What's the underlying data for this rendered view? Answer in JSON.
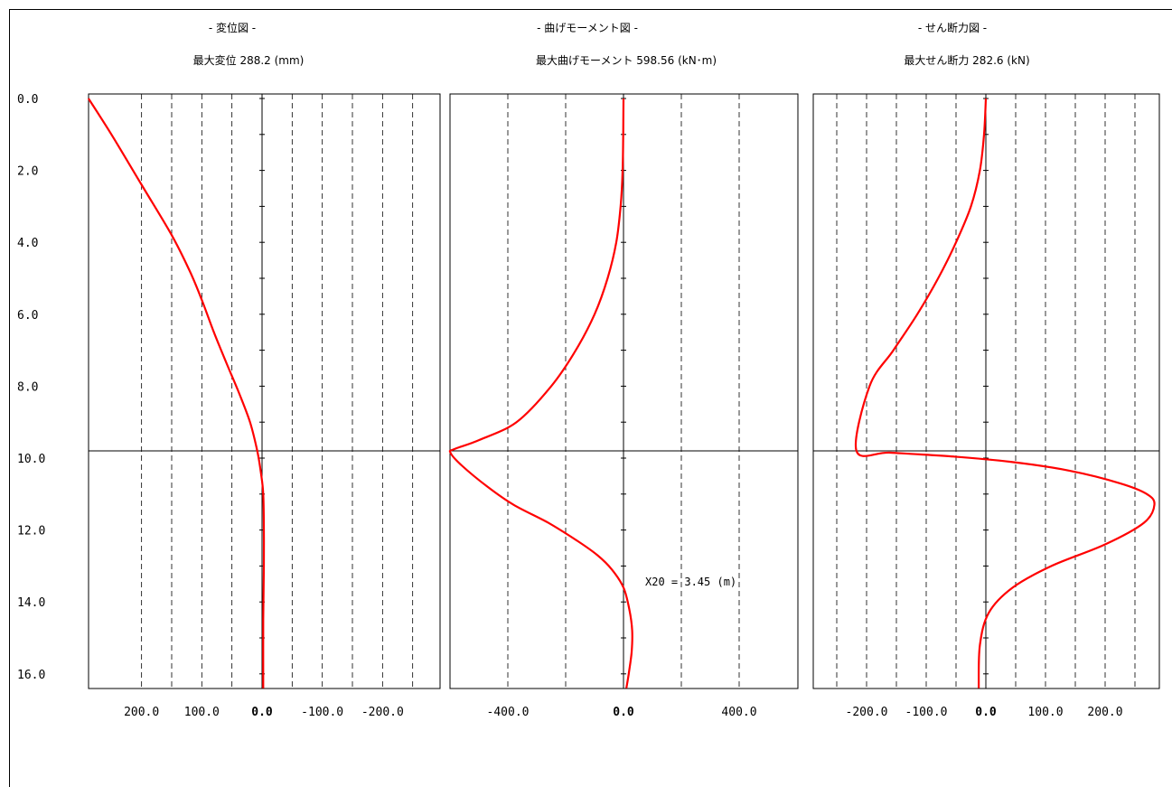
{
  "colors": {
    "curve": "#ff0000",
    "axis": "#000000",
    "grid": "#000000",
    "background": "#ffffff"
  },
  "depth_axis": {
    "ticks": [
      "0.0",
      "2.0",
      "4.0",
      "6.0",
      "8.0",
      "10.0",
      "12.0",
      "14.0",
      "16.0"
    ],
    "range": [
      0,
      16.4
    ],
    "layer_boundary_depth": 9.8
  },
  "chart_data": [
    {
      "type": "line",
      "title": "-  変位図  -",
      "subtitle": "最大変位 288.2 (mm)",
      "x_ticks": [
        200,
        100,
        0,
        -100,
        -200
      ],
      "x_tick_labels": [
        "200.0",
        "100.0",
        "0.0",
        "-100.0",
        "-200.0"
      ],
      "xlim": [
        288.2,
        -255
      ],
      "grid_values": [
        200,
        150,
        100,
        50,
        -50,
        -100,
        -150,
        -200,
        -250
      ],
      "series": [
        {
          "x": [
            288.2,
            250,
            200,
            150,
            120,
            100,
            80,
            58,
            38,
            20,
            8,
            2,
            -2,
            -3,
            -3,
            -2,
            -2
          ],
          "y": [
            0,
            1.0,
            2.4,
            3.8,
            4.8,
            5.6,
            6.5,
            7.4,
            8.2,
            9.0,
            9.8,
            10.4,
            11.0,
            12.0,
            13.0,
            14.5,
            16.4
          ]
        }
      ]
    },
    {
      "type": "line",
      "title": "-  曲げモーメント図  -",
      "subtitle": "最大曲げモーメント 598.56 (kN･m)",
      "x_ticks": [
        -400,
        0,
        400
      ],
      "x_tick_labels": [
        "-400.0",
        "0.0",
        "400.0"
      ],
      "xlim": [
        -598.56,
        598.56
      ],
      "grid_values": [
        -400,
        -200,
        200,
        400
      ],
      "annotation": "X20 = 3.45 (m)",
      "series": [
        {
          "x": [
            0,
            -1,
            -3,
            -10,
            -25,
            -55,
            -100,
            -165,
            -250,
            -370,
            -500,
            -585,
            -598.56,
            -560,
            -470,
            -380,
            -260,
            -160,
            -90,
            -40,
            0,
            20,
            30,
            28,
            18,
            10
          ],
          "y": [
            0,
            1.0,
            2.0,
            3.0,
            4.0,
            5.0,
            6.0,
            7.0,
            8.0,
            9.0,
            9.5,
            9.75,
            9.85,
            10.2,
            10.8,
            11.3,
            11.8,
            12.3,
            12.7,
            13.1,
            13.6,
            14.2,
            14.8,
            15.4,
            16.0,
            16.4
          ]
        }
      ]
    },
    {
      "type": "line",
      "title": "-  せん断力図  -",
      "subtitle": "最大せん断力 282.6 (kN)",
      "x_ticks": [
        -200,
        -100,
        0,
        100,
        200
      ],
      "x_tick_labels": [
        "-200.0",
        "-100.0",
        "0.0",
        "100.0",
        "200.0"
      ],
      "xlim": [
        -282.6,
        282.6
      ],
      "grid_values": [
        -250,
        -200,
        -150,
        -100,
        -50,
        50,
        100,
        150,
        200,
        250
      ],
      "series": [
        {
          "x": [
            0,
            -3,
            -10,
            -25,
            -50,
            -80,
            -115,
            -155,
            -195,
            -217,
            -160,
            -60,
            40,
            140,
            225,
            270,
            282.6,
            265,
            200,
            110,
            45,
            5,
            -10,
            -12
          ],
          "y": [
            0,
            1.0,
            2.0,
            3.0,
            4.0,
            5.0,
            6.0,
            7.0,
            8.0,
            9.8,
            9.85,
            9.95,
            10.1,
            10.35,
            10.7,
            11.0,
            11.3,
            11.8,
            12.4,
            13.0,
            13.6,
            14.3,
            15.2,
            16.4
          ]
        }
      ]
    }
  ]
}
